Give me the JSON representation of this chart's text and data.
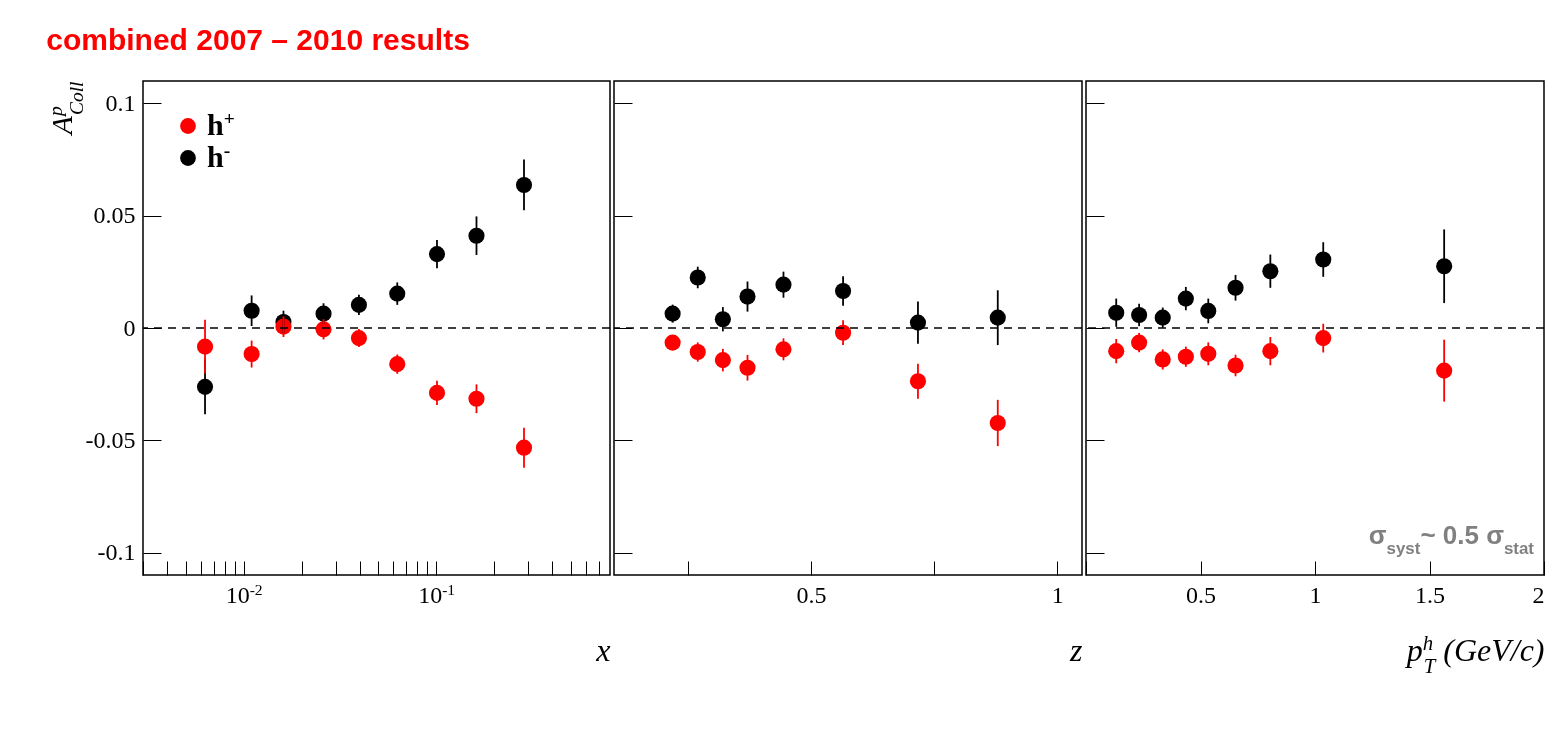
{
  "chart_data": [
    {
      "type": "scatter",
      "title": "combined 2007 – 2010 results",
      "xlabel": "x",
      "ylabel": "A$^{p}$$_{Coll}$",
      "log": "x",
      "marker": "circle",
      "legend": "top left",
      "xlim": [
        0.003,
        0.8
      ],
      "ylim": [
        -0.11,
        0.11
      ],
      "xticks": [
        {
          "value": 0.003,
          "label": null
        },
        {
          "value": 0.004,
          "label": null
        },
        {
          "value": 0.005,
          "label": null
        },
        {
          "value": 0.006,
          "label": null
        },
        {
          "value": 0.007,
          "label": null
        },
        {
          "value": 0.008,
          "label": null
        },
        {
          "value": 0.009,
          "label": null
        },
        {
          "value": 0.01,
          "label": "10$^{-2}$"
        },
        {
          "value": 0.02,
          "label": null
        },
        {
          "value": 0.03,
          "label": null
        },
        {
          "value": 0.04,
          "label": null
        },
        {
          "value": 0.05,
          "label": null
        },
        {
          "value": 0.06,
          "label": null
        },
        {
          "value": 0.07,
          "label": null
        },
        {
          "value": 0.08,
          "label": null
        },
        {
          "value": 0.09,
          "label": null
        },
        {
          "value": 0.1,
          "label": "10$^{-1}$"
        },
        {
          "value": 0.2,
          "label": null
        },
        {
          "value": 0.3,
          "label": null
        },
        {
          "value": 0.4,
          "label": null
        },
        {
          "value": 0.5,
          "label": null
        },
        {
          "value": 0.6,
          "label": null
        },
        {
          "value": 0.7,
          "label": null
        }
      ],
      "yticks": [
        -0.1,
        -0.05,
        0,
        0.05,
        0.1
      ],
      "ref_lines": [
        {
          "axis": "y",
          "value": 0,
          "line_style": "dashed",
          "color": "#000000"
        }
      ],
      "x": [
        0.0063,
        0.011,
        0.0161,
        0.026,
        0.0397,
        0.0628,
        0.101,
        0.162,
        0.286
      ],
      "series": [
        {
          "name": "h$^{+}$",
          "color": "#ff0000",
          "values": [
            -0.0083,
            -0.0116,
            0.0006,
            -0.0006,
            -0.0045,
            -0.0161,
            -0.0289,
            -0.0315,
            -0.0533
          ],
          "errors": [
            0.012,
            0.006,
            0.0046,
            0.0045,
            0.004,
            0.0043,
            0.0054,
            0.0064,
            0.0089
          ]
        },
        {
          "name": "h$^{-}$",
          "color": "#000000",
          "values": [
            -0.0262,
            0.0077,
            0.0027,
            0.0064,
            0.0103,
            0.0153,
            0.0329,
            0.0411,
            0.0637
          ],
          "errors": [
            0.0122,
            0.0068,
            0.005,
            0.0046,
            0.0045,
            0.005,
            0.0063,
            0.0086,
            0.0113
          ]
        }
      ]
    },
    {
      "type": "scatter",
      "xlabel": "z",
      "marker": "circle",
      "tick_labels": "x",
      "xlim": [
        0.1,
        1.05
      ],
      "ylim": [
        -0.11,
        0.11
      ],
      "xticks": [
        {
          "value": 0.25,
          "label": null
        },
        0.5,
        {
          "value": 0.75,
          "label": null
        },
        1
      ],
      "yticks": [
        -0.1,
        -0.05,
        0,
        0.05,
        0.1
      ],
      "ref_lines": [
        {
          "axis": "y",
          "value": 0,
          "line_style": "dashed",
          "color": "#000000"
        }
      ],
      "x": [
        0.219,
        0.27,
        0.321,
        0.371,
        0.444,
        0.565,
        0.717,
        0.879
      ],
      "series": [
        {
          "color": "#ff0000",
          "values": [
            -0.0065,
            -0.0107,
            -0.0143,
            -0.0177,
            -0.0095,
            -0.0021,
            -0.0237,
            -0.0423
          ],
          "errors": [
            0.003,
            0.0043,
            0.005,
            0.0057,
            0.0049,
            0.0055,
            0.0078,
            0.0103
          ]
        },
        {
          "color": "#000000",
          "values": [
            0.0064,
            0.0225,
            0.0039,
            0.014,
            0.0193,
            0.0165,
            0.0024,
            0.0046
          ],
          "errors": [
            0.004,
            0.0048,
            0.0054,
            0.0067,
            0.0058,
            0.0066,
            0.0094,
            0.0122
          ]
        }
      ]
    },
    {
      "type": "scatter",
      "xlabel": "p$^{h}$$_{T}$ (GeV/c)",
      "marker": "circle",
      "tick_labels": "x",
      "xlim": [
        0,
        2
      ],
      "ylim": [
        -0.11,
        0.11
      ],
      "xticks": [
        {
          "value": 0,
          "label": null
        },
        0.5,
        1,
        1.5,
        2
      ],
      "yticks": [
        -0.1,
        -0.05,
        0,
        0.05,
        0.1
      ],
      "annotations": [
        "σ$_{syst}$~ 0.5 σ$_{stat}$"
      ],
      "ref_lines": [
        {
          "axis": "y",
          "value": 0,
          "line_style": "dashed",
          "color": "#000000"
        }
      ],
      "x": [
        0.132,
        0.232,
        0.335,
        0.436,
        0.534,
        0.653,
        0.805,
        1.036,
        1.564
      ],
      "series": [
        {
          "color": "#ff0000",
          "values": [
            -0.0103,
            -0.0065,
            -0.014,
            -0.0128,
            -0.0115,
            -0.0167,
            -0.0103,
            -0.0045,
            -0.019
          ],
          "errors": [
            0.0054,
            0.0043,
            0.0045,
            0.0045,
            0.0051,
            0.0048,
            0.0063,
            0.0064,
            0.0138
          ]
        },
        {
          "color": "#000000",
          "values": [
            0.0068,
            0.0058,
            0.0046,
            0.0131,
            0.0076,
            0.0179,
            0.0253,
            0.0305,
            0.0275
          ],
          "errors": [
            0.0063,
            0.005,
            0.0045,
            0.0052,
            0.0055,
            0.0057,
            0.0074,
            0.0077,
            0.0164
          ]
        }
      ]
    }
  ]
}
